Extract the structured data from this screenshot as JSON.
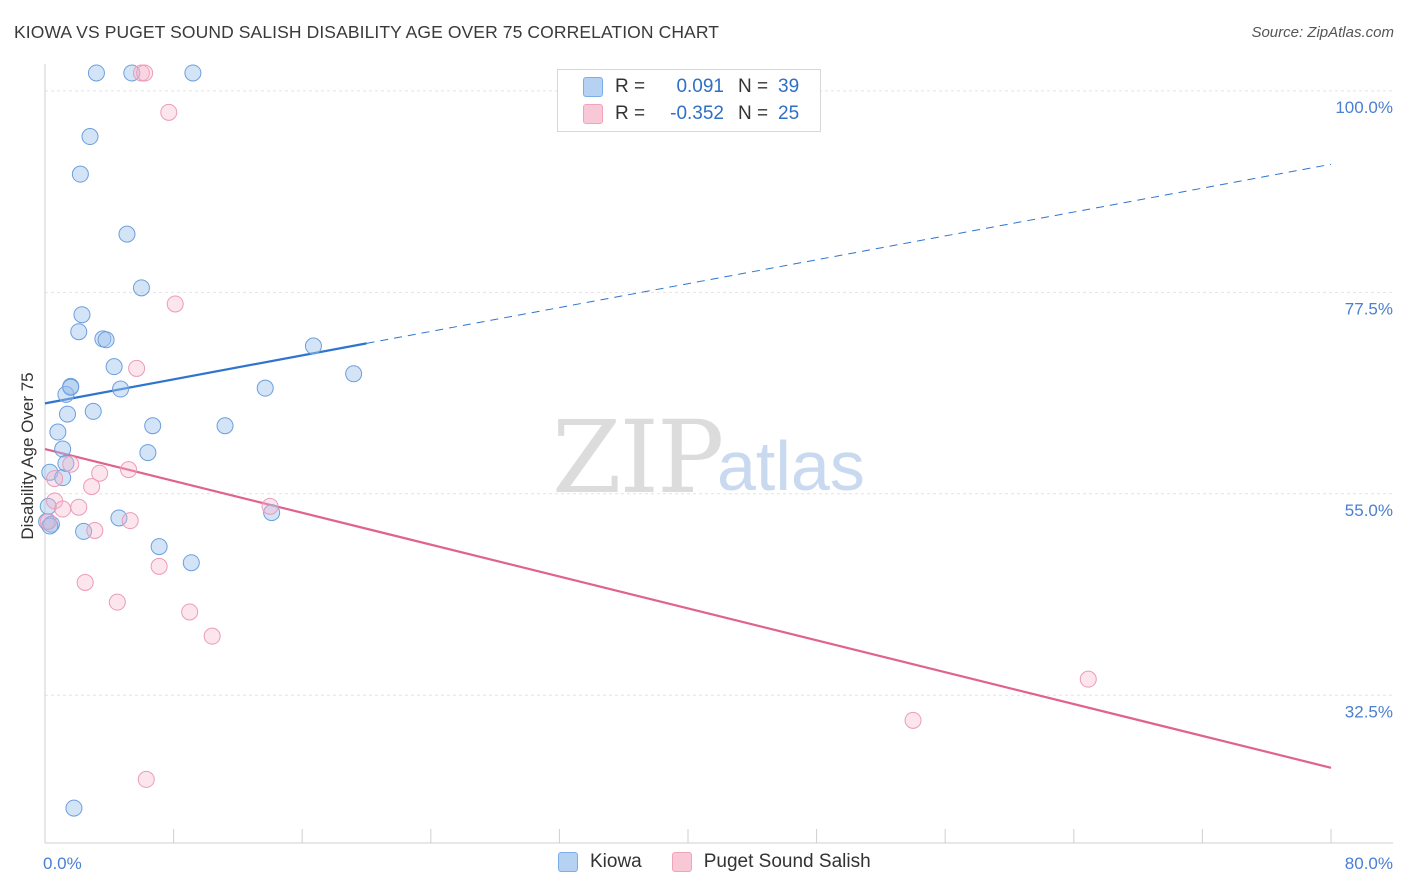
{
  "title": "KIOWA VS PUGET SOUND SALISH DISABILITY AGE OVER 75 CORRELATION CHART",
  "source": "Source: ZipAtlas.com",
  "watermark": {
    "zip": "ZIP",
    "atlas": "atlas"
  },
  "legend_top": {
    "rows": [
      {
        "r_label": "R =",
        "r_value": "0.091",
        "n_label": "N =",
        "n_value": "39"
      },
      {
        "r_label": "R =",
        "r_value": "-0.352",
        "n_label": "N =",
        "n_value": "25"
      }
    ]
  },
  "chart_data": {
    "type": "scatter",
    "title": "KIOWA VS PUGET SOUND SALISH DISABILITY AGE OVER 75 CORRELATION CHART",
    "xlabel": "",
    "ylabel": "Disability Age Over 75",
    "xlim": [
      0,
      80
    ],
    "ylim": [
      16,
      103
    ],
    "x_tick_labels": [
      "0.0%",
      "80.0%"
    ],
    "y_ticks": [
      32.5,
      55.0,
      77.5,
      100.0
    ],
    "y_tick_labels": [
      "32.5%",
      "55.0%",
      "77.5%",
      "100.0%"
    ],
    "grid": true,
    "legend_position": "bottom",
    "colors": {
      "kiowa": "#7aaee8",
      "kiowa_line": "#2f74d0",
      "puget": "#f0a3bd",
      "puget_line": "#e0628f",
      "tick_label": "#4a7fd1"
    },
    "series": [
      {
        "name": "Kiowa",
        "r": 0.091,
        "n": 39,
        "points": [
          [
            3.2,
            102.0
          ],
          [
            5.4,
            102.0
          ],
          [
            9.2,
            102.0
          ],
          [
            2.8,
            94.9
          ],
          [
            2.2,
            90.7
          ],
          [
            5.1,
            84.0
          ],
          [
            6.0,
            78.0
          ],
          [
            2.3,
            75.0
          ],
          [
            2.1,
            73.1
          ],
          [
            3.6,
            72.3
          ],
          [
            3.8,
            72.2
          ],
          [
            4.3,
            69.2
          ],
          [
            16.7,
            71.5
          ],
          [
            19.2,
            68.4
          ],
          [
            1.6,
            67.0
          ],
          [
            1.3,
            66.1
          ],
          [
            1.6,
            66.9
          ],
          [
            4.7,
            66.7
          ],
          [
            3.0,
            64.2
          ],
          [
            1.4,
            63.9
          ],
          [
            6.7,
            62.6
          ],
          [
            11.2,
            62.6
          ],
          [
            13.7,
            66.8
          ],
          [
            0.8,
            61.9
          ],
          [
            1.1,
            60.0
          ],
          [
            6.4,
            59.6
          ],
          [
            0.3,
            57.4
          ],
          [
            1.1,
            56.8
          ],
          [
            1.3,
            58.4
          ],
          [
            0.2,
            53.6
          ],
          [
            4.6,
            52.3
          ],
          [
            0.1,
            51.9
          ],
          [
            0.4,
            51.6
          ],
          [
            0.3,
            51.4
          ],
          [
            2.4,
            50.8
          ],
          [
            14.1,
            52.9
          ],
          [
            7.1,
            49.1
          ],
          [
            9.1,
            47.3
          ],
          [
            1.8,
            19.9
          ]
        ]
      },
      {
        "name": "Puget Sound Salish",
        "r": -0.352,
        "n": 25,
        "points": [
          [
            6.0,
            102.0
          ],
          [
            6.2,
            102.0
          ],
          [
            7.7,
            97.6
          ],
          [
            8.1,
            76.2
          ],
          [
            5.7,
            69.0
          ],
          [
            1.6,
            58.3
          ],
          [
            3.4,
            57.3
          ],
          [
            5.2,
            57.7
          ],
          [
            0.6,
            56.7
          ],
          [
            2.9,
            55.8
          ],
          [
            0.6,
            54.2
          ],
          [
            1.1,
            53.3
          ],
          [
            2.1,
            53.5
          ],
          [
            14.0,
            53.6
          ],
          [
            5.3,
            52.0
          ],
          [
            3.1,
            50.9
          ],
          [
            7.1,
            46.9
          ],
          [
            2.5,
            45.1
          ],
          [
            4.5,
            42.9
          ],
          [
            9.0,
            41.8
          ],
          [
            10.4,
            39.1
          ],
          [
            64.9,
            34.3
          ],
          [
            54.0,
            29.7
          ],
          [
            6.3,
            23.1
          ],
          [
            0.2,
            51.9
          ]
        ]
      }
    ],
    "trend_lines": [
      {
        "series": "Kiowa",
        "x": [
          0,
          20,
          80
        ],
        "y": [
          65.1,
          71.8,
          91.8
        ],
        "solid_until_x": 20
      },
      {
        "series": "Puget Sound Salish",
        "x": [
          0,
          80
        ],
        "y": [
          60.0,
          24.4
        ]
      }
    ]
  }
}
